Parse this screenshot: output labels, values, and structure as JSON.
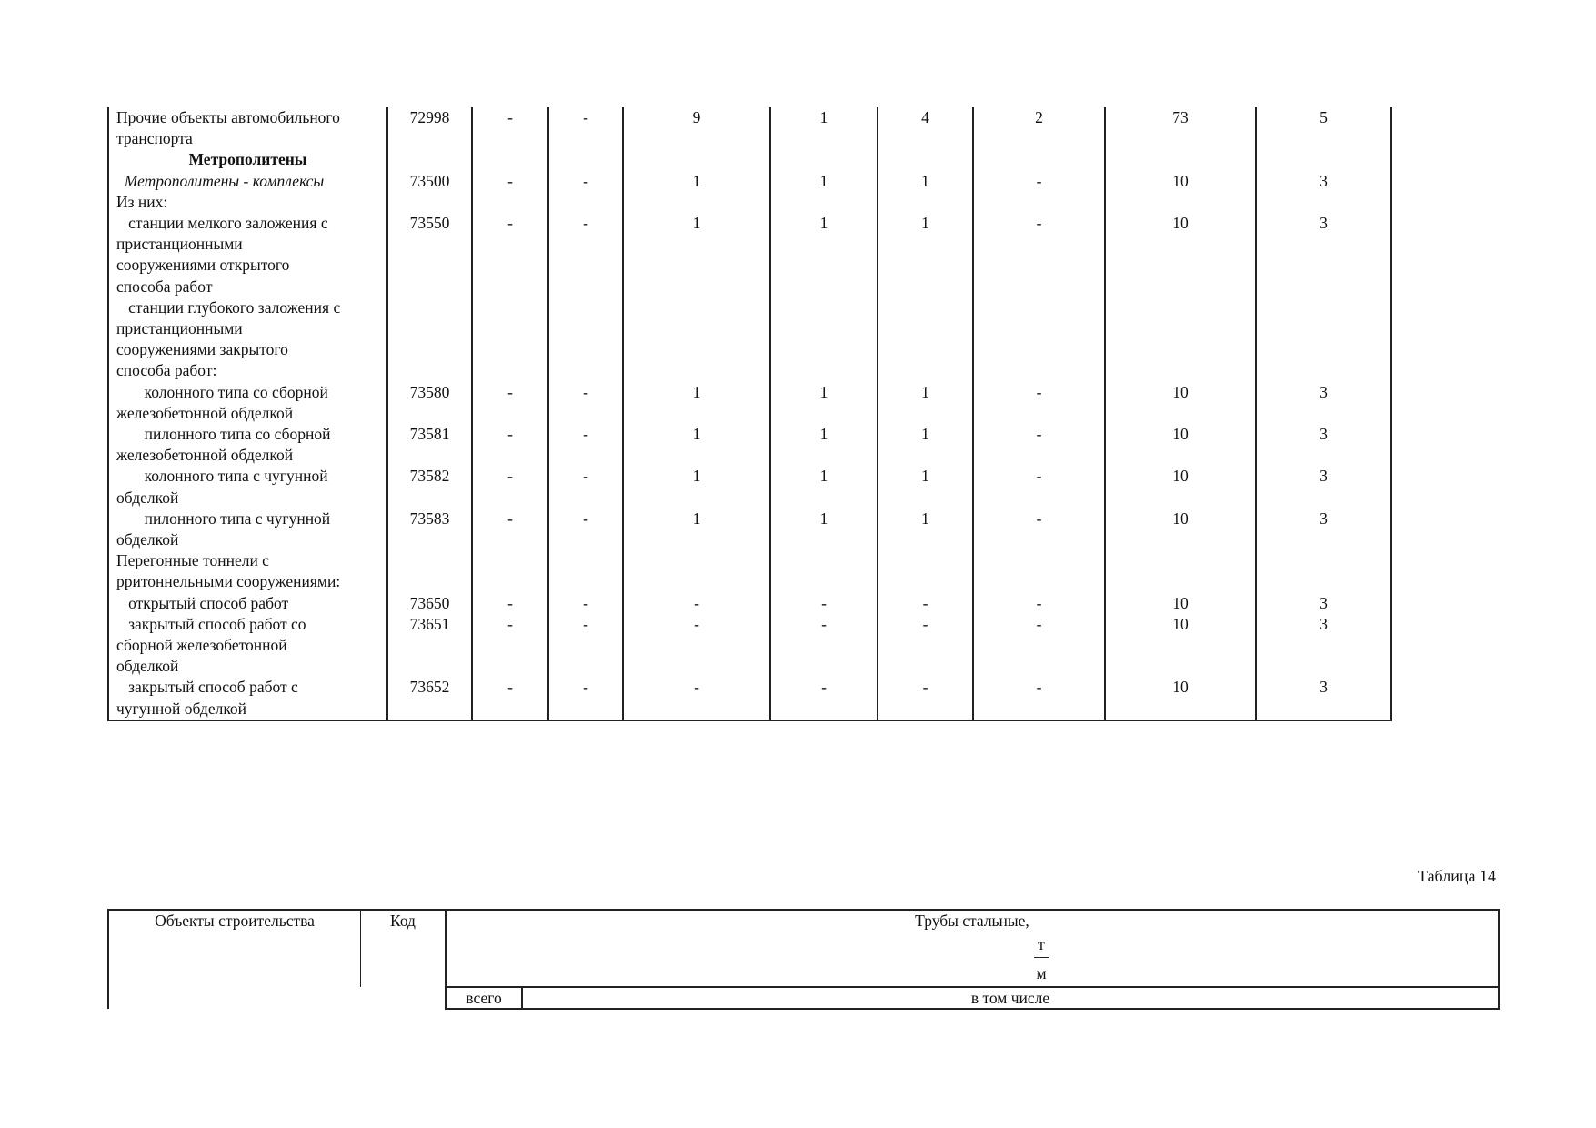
{
  "table13": {
    "rows": [
      {
        "label": "Прочие объекты автомобильного\nтранспорта",
        "code": "72998",
        "values": [
          "-",
          "-",
          "9",
          "1",
          "4",
          "2",
          "73",
          "5"
        ]
      },
      {
        "label": "Метрополитены",
        "type": "section"
      },
      {
        "label": "  Метрополитены - комплексы",
        "code": "73500",
        "values": [
          "-",
          "-",
          "1",
          "1",
          "1",
          "-",
          "10",
          "3"
        ],
        "style": "italic"
      },
      {
        "label": "Из них:"
      },
      {
        "label": "   станции мелкого заложения с\nпристанционными\nсооружениями открытого\nспособа работ",
        "code": "73550",
        "values": [
          "-",
          "-",
          "1",
          "1",
          "1",
          "-",
          "10",
          "3"
        ]
      },
      {
        "label": "   станции глубокого заложения с\nпристанционными\nсооружениями закрытого\nспособа работ:"
      },
      {
        "label": "       колонного типа со сборной\nжелезобетонной обделкой",
        "code": "73580",
        "values": [
          "-",
          "-",
          "1",
          "1",
          "1",
          "-",
          "10",
          "3"
        ]
      },
      {
        "label": "       пилонного типа со сборной\nжелезобетонной обделкой",
        "code": "73581",
        "values": [
          "-",
          "-",
          "1",
          "1",
          "1",
          "-",
          "10",
          "3"
        ]
      },
      {
        "label": "       колонного типа с чугунной\nобделкой",
        "code": "73582",
        "values": [
          "-",
          "-",
          "1",
          "1",
          "1",
          "-",
          "10",
          "3"
        ]
      },
      {
        "label": "       пилонного типа с чугунной\nобделкой",
        "code": "73583",
        "values": [
          "-",
          "-",
          "1",
          "1",
          "1",
          "-",
          "10",
          "3"
        ]
      },
      {
        "label": "Перегонные тоннели с\npритоннельными сооружениями:"
      },
      {
        "label": "   открытый способ работ",
        "code": "73650",
        "values": [
          "-",
          "-",
          "-",
          "-",
          "-",
          "-",
          "10",
          "3"
        ]
      },
      {
        "label": "   закрытый способ работ со\nсборной железобетонной\nобделкой",
        "code": "73651",
        "values": [
          "-",
          "-",
          "-",
          "-",
          "-",
          "-",
          "10",
          "3"
        ]
      },
      {
        "label": "   закрытый способ работ с\nчугунной обделкой",
        "code": "73652",
        "values": [
          "-",
          "-",
          "-",
          "-",
          "-",
          "-",
          "10",
          "3"
        ]
      }
    ]
  },
  "table14": {
    "caption": "Таблица 14",
    "col_objects": "Объекты строительства",
    "col_code": "Код",
    "col_pipes": "Трубы стальные,",
    "unit_numerator": "т",
    "unit_denominator": "м",
    "col_total": "всего",
    "col_including": "в том числе"
  }
}
